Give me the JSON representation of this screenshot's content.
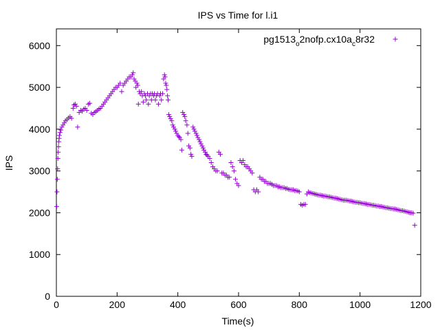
{
  "chart_data": {
    "type": "scatter",
    "title": "IPS vs Time for l.i1",
    "xlabel": "Time(s)",
    "ylabel": "IPS",
    "xlim": [
      0,
      1200
    ],
    "ylim": [
      0,
      6400
    ],
    "xticks": [
      0,
      200,
      400,
      600,
      800,
      1000,
      1200
    ],
    "yticks": [
      0,
      1000,
      2000,
      3000,
      4000,
      5000,
      6000
    ],
    "grid": false,
    "legend_position": "top-right",
    "marker": "plus",
    "series": [
      {
        "name": "pg1513_o2nofp.cx10a_c8r32",
        "color": "#9400d3",
        "points": [
          [
            1,
            2150
          ],
          [
            2,
            2500
          ],
          [
            3,
            2800
          ],
          [
            4,
            3050
          ],
          [
            5,
            3300
          ],
          [
            6,
            3450
          ],
          [
            7,
            3580
          ],
          [
            8,
            3700
          ],
          [
            9,
            3780
          ],
          [
            10,
            3850
          ],
          [
            12,
            3920
          ],
          [
            15,
            3980
          ],
          [
            18,
            4050
          ],
          [
            22,
            4100
          ],
          [
            26,
            4150
          ],
          [
            30,
            4200
          ],
          [
            35,
            4230
          ],
          [
            40,
            4270
          ],
          [
            45,
            4300
          ],
          [
            50,
            4260
          ],
          [
            55,
            4500
          ],
          [
            58,
            4580
          ],
          [
            62,
            4600
          ],
          [
            66,
            4550
          ],
          [
            70,
            4050
          ],
          [
            75,
            4400
          ],
          [
            80,
            4450
          ],
          [
            85,
            4430
          ],
          [
            90,
            4480
          ],
          [
            95,
            4500
          ],
          [
            100,
            4450
          ],
          [
            105,
            4600
          ],
          [
            110,
            4620
          ],
          [
            115,
            4380
          ],
          [
            120,
            4350
          ],
          [
            125,
            4400
          ],
          [
            130,
            4420
          ],
          [
            135,
            4450
          ],
          [
            140,
            4480
          ],
          [
            145,
            4500
          ],
          [
            150,
            4550
          ],
          [
            155,
            4600
          ],
          [
            160,
            4650
          ],
          [
            165,
            4700
          ],
          [
            170,
            4750
          ],
          [
            175,
            4800
          ],
          [
            180,
            4850
          ],
          [
            185,
            4900
          ],
          [
            190,
            4950
          ],
          [
            195,
            5000
          ],
          [
            200,
            5000
          ],
          [
            205,
            5050
          ],
          [
            210,
            5100
          ],
          [
            215,
            4900
          ],
          [
            220,
            5050
          ],
          [
            225,
            5100
          ],
          [
            230,
            5150
          ],
          [
            235,
            5200
          ],
          [
            240,
            5250
          ],
          [
            245,
            5250
          ],
          [
            250,
            5300
          ],
          [
            253,
            5350
          ],
          [
            256,
            5200
          ],
          [
            260,
            5150
          ],
          [
            262,
            5000
          ],
          [
            265,
            5100
          ],
          [
            268,
            5050
          ],
          [
            270,
            4600
          ],
          [
            273,
            4900
          ],
          [
            276,
            4850
          ],
          [
            280,
            4900
          ],
          [
            283,
            4800
          ],
          [
            286,
            4650
          ],
          [
            290,
            4850
          ],
          [
            293,
            4800
          ],
          [
            296,
            4700
          ],
          [
            300,
            4850
          ],
          [
            303,
            4600
          ],
          [
            306,
            4800
          ],
          [
            310,
            4850
          ],
          [
            313,
            4700
          ],
          [
            316,
            4850
          ],
          [
            320,
            4800
          ],
          [
            323,
            4850
          ],
          [
            326,
            4700
          ],
          [
            330,
            4800
          ],
          [
            333,
            4850
          ],
          [
            336,
            4600
          ],
          [
            340,
            4800
          ],
          [
            343,
            4850
          ],
          [
            346,
            4700
          ],
          [
            350,
            4850
          ],
          [
            353,
            5200
          ],
          [
            356,
            5300
          ],
          [
            358,
            5250
          ],
          [
            360,
            5100
          ],
          [
            362,
            5050
          ],
          [
            364,
            4950
          ],
          [
            366,
            4800
          ],
          [
            368,
            4700
          ],
          [
            370,
            4350
          ],
          [
            373,
            4300
          ],
          [
            376,
            4250
          ],
          [
            380,
            4200
          ],
          [
            383,
            4100
          ],
          [
            386,
            4050
          ],
          [
            390,
            4000
          ],
          [
            393,
            3950
          ],
          [
            396,
            3900
          ],
          [
            400,
            3850
          ],
          [
            403,
            3820
          ],
          [
            406,
            3800
          ],
          [
            410,
            3750
          ],
          [
            413,
            3500
          ],
          [
            416,
            4400
          ],
          [
            420,
            4350
          ],
          [
            423,
            4300
          ],
          [
            426,
            4200
          ],
          [
            430,
            4100
          ],
          [
            433,
            3900
          ],
          [
            436,
            3600
          ],
          [
            440,
            3550
          ],
          [
            443,
            3400
          ],
          [
            446,
            3350
          ],
          [
            450,
            4050
          ],
          [
            453,
            4000
          ],
          [
            456,
            3950
          ],
          [
            460,
            3900
          ],
          [
            463,
            3850
          ],
          [
            466,
            3800
          ],
          [
            470,
            3750
          ],
          [
            473,
            3700
          ],
          [
            476,
            3650
          ],
          [
            480,
            3600
          ],
          [
            483,
            3550
          ],
          [
            486,
            3500
          ],
          [
            490,
            3450
          ],
          [
            493,
            3400
          ],
          [
            496,
            3380
          ],
          [
            500,
            3350
          ],
          [
            505,
            3300
          ],
          [
            510,
            3200
          ],
          [
            515,
            3100
          ],
          [
            520,
            3050
          ],
          [
            525,
            3000
          ],
          [
            530,
            3000
          ],
          [
            535,
            3450
          ],
          [
            540,
            3400
          ],
          [
            545,
            2950
          ],
          [
            550,
            2950
          ],
          [
            555,
            2900
          ],
          [
            560,
            2900
          ],
          [
            565,
            2850
          ],
          [
            570,
            2850
          ],
          [
            575,
            3200
          ],
          [
            580,
            3100
          ],
          [
            585,
            3000
          ],
          [
            590,
            2800
          ],
          [
            595,
            2700
          ],
          [
            600,
            2650
          ],
          [
            605,
            3250
          ],
          [
            610,
            3200
          ],
          [
            615,
            3250
          ],
          [
            620,
            3150
          ],
          [
            625,
            3100
          ],
          [
            630,
            3100
          ],
          [
            635,
            3050
          ],
          [
            640,
            3000
          ],
          [
            645,
            2950
          ],
          [
            650,
            2550
          ],
          [
            655,
            2500
          ],
          [
            660,
            2550
          ],
          [
            665,
            2500
          ],
          [
            670,
            2850
          ],
          [
            675,
            2800
          ],
          [
            680,
            2800
          ],
          [
            685,
            2750
          ],
          [
            690,
            2750
          ],
          [
            695,
            2700
          ],
          [
            700,
            2700
          ],
          [
            705,
            2700
          ],
          [
            710,
            2680
          ],
          [
            715,
            2650
          ],
          [
            720,
            2650
          ],
          [
            725,
            2650
          ],
          [
            730,
            2620
          ],
          [
            735,
            2620
          ],
          [
            740,
            2600
          ],
          [
            745,
            2600
          ],
          [
            750,
            2600
          ],
          [
            755,
            2580
          ],
          [
            760,
            2580
          ],
          [
            765,
            2560
          ],
          [
            770,
            2550
          ],
          [
            775,
            2550
          ],
          [
            780,
            2550
          ],
          [
            785,
            2530
          ],
          [
            790,
            2530
          ],
          [
            795,
            2520
          ],
          [
            800,
            2500
          ],
          [
            805,
            2200
          ],
          [
            810,
            2180
          ],
          [
            815,
            2200
          ],
          [
            820,
            2200
          ],
          [
            825,
            2450
          ],
          [
            830,
            2500
          ],
          [
            835,
            2480
          ],
          [
            840,
            2470
          ],
          [
            845,
            2460
          ],
          [
            850,
            2450
          ],
          [
            855,
            2440
          ],
          [
            860,
            2430
          ],
          [
            865,
            2420
          ],
          [
            870,
            2420
          ],
          [
            875,
            2410
          ],
          [
            880,
            2400
          ],
          [
            885,
            2400
          ],
          [
            890,
            2390
          ],
          [
            895,
            2380
          ],
          [
            900,
            2380
          ],
          [
            905,
            2370
          ],
          [
            910,
            2360
          ],
          [
            915,
            2350
          ],
          [
            920,
            2350
          ],
          [
            925,
            2340
          ],
          [
            930,
            2330
          ],
          [
            935,
            2320
          ],
          [
            940,
            2310
          ],
          [
            945,
            2300
          ],
          [
            950,
            2300
          ],
          [
            955,
            2300
          ],
          [
            960,
            2290
          ],
          [
            965,
            2280
          ],
          [
            970,
            2280
          ],
          [
            975,
            2270
          ],
          [
            980,
            2260
          ],
          [
            985,
            2250
          ],
          [
            990,
            2250
          ],
          [
            995,
            2240
          ],
          [
            1000,
            2240
          ],
          [
            1005,
            2230
          ],
          [
            1010,
            2220
          ],
          [
            1015,
            2220
          ],
          [
            1020,
            2210
          ],
          [
            1025,
            2200
          ],
          [
            1030,
            2200
          ],
          [
            1035,
            2190
          ],
          [
            1040,
            2180
          ],
          [
            1045,
            2180
          ],
          [
            1050,
            2170
          ],
          [
            1055,
            2160
          ],
          [
            1060,
            2160
          ],
          [
            1065,
            2150
          ],
          [
            1070,
            2150
          ],
          [
            1075,
            2140
          ],
          [
            1080,
            2130
          ],
          [
            1085,
            2120
          ],
          [
            1090,
            2120
          ],
          [
            1095,
            2110
          ],
          [
            1100,
            2100
          ],
          [
            1105,
            2100
          ],
          [
            1110,
            2090
          ],
          [
            1115,
            2090
          ],
          [
            1120,
            2080
          ],
          [
            1125,
            2070
          ],
          [
            1130,
            2060
          ],
          [
            1135,
            2050
          ],
          [
            1140,
            2050
          ],
          [
            1145,
            2040
          ],
          [
            1150,
            2030
          ],
          [
            1155,
            2020
          ],
          [
            1160,
            2010
          ],
          [
            1165,
            2000
          ],
          [
            1170,
            2000
          ],
          [
            1175,
            1990
          ],
          [
            1180,
            1700
          ]
        ]
      }
    ]
  }
}
